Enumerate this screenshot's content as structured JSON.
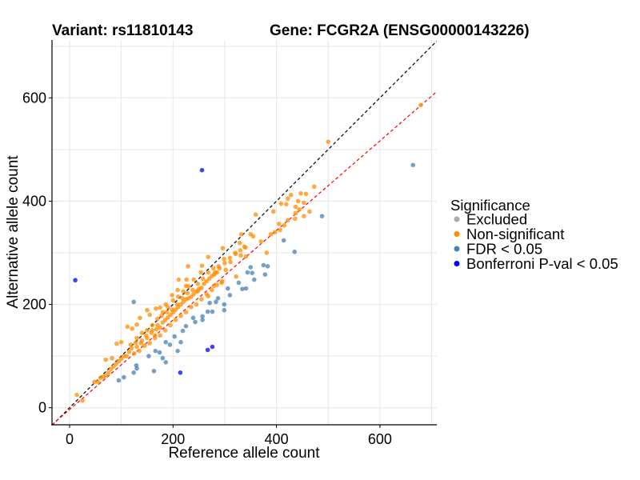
{
  "chart_data": {
    "type": "scatter",
    "title_left": "Variant: rs11810143",
    "title_right": "Gene: FCGR2A (ENSG00000143226)",
    "xlabel": "Reference allele count",
    "ylabel": "Alternative allele count",
    "xlim": [
      -34,
      710
    ],
    "ylim": [
      -33,
      712
    ],
    "xticks": [
      0,
      200,
      400,
      600
    ],
    "yticks": [
      0,
      200,
      400,
      600
    ],
    "grid": true,
    "legend": {
      "title": "Significance",
      "placement": "right",
      "entries": [
        {
          "label": "Excluded",
          "color": "#A9A9A9"
        },
        {
          "label": "Non-significant",
          "color": "#FF8C00"
        },
        {
          "label": "FDR < 0.05",
          "color": "#4682B4"
        },
        {
          "label": "Bonferroni P-val < 0.05",
          "color": "#0000FF"
        }
      ]
    },
    "reference_line": {
      "slope": 1,
      "intercept": 0,
      "color": "#000000",
      "style": "dashed"
    },
    "regression_line": {
      "slope": 0.867,
      "intercept": -3.5,
      "color": "#FF0000",
      "style": "dashed"
    },
    "series": [
      {
        "name": "Non-significant",
        "color": "#FF8C00",
        "points": [
          [
            679,
            586
          ],
          [
            500,
            515
          ],
          [
            473,
            428
          ],
          [
            447,
            415
          ],
          [
            457,
            414
          ],
          [
            428,
            412
          ],
          [
            422,
            405
          ],
          [
            442,
            400
          ],
          [
            453,
            397
          ],
          [
            409,
            395
          ],
          [
            419,
            394
          ],
          [
            437,
            389
          ],
          [
            444,
            384
          ],
          [
            464,
            380
          ],
          [
            394,
            380
          ],
          [
            437,
            377
          ],
          [
            360,
            374
          ],
          [
            453,
            371
          ],
          [
            436,
            366
          ],
          [
            422,
            363
          ],
          [
            405,
            356
          ],
          [
            415,
            353
          ],
          [
            407,
            344
          ],
          [
            397,
            340
          ],
          [
            389,
            336
          ],
          [
            332,
            336
          ],
          [
            350,
            336
          ],
          [
            355,
            332
          ],
          [
            370,
            322
          ],
          [
            329,
            319
          ],
          [
            338,
            312
          ],
          [
            381,
            300
          ],
          [
            296,
            309
          ],
          [
            321,
            298
          ],
          [
            331,
            295
          ],
          [
            341,
            293
          ],
          [
            268,
            292
          ],
          [
            299,
            288
          ],
          [
            311,
            282
          ],
          [
            256,
            275
          ],
          [
            229,
            274
          ],
          [
            288,
            274
          ],
          [
            302,
            267
          ],
          [
            281,
            262
          ],
          [
            254,
            262
          ],
          [
            322,
            254
          ],
          [
            211,
            248
          ],
          [
            226,
            248
          ],
          [
            294,
            242
          ],
          [
            279,
            236
          ],
          [
            225,
            236
          ],
          [
            209,
            228
          ],
          [
            248,
            226
          ],
          [
            198,
            218
          ],
          [
            268,
            216
          ],
          [
            186,
            200
          ],
          [
            150,
            189
          ],
          [
            155,
            180
          ],
          [
            167,
            192
          ],
          [
            175,
            194
          ],
          [
            136,
            174
          ],
          [
            130,
            161
          ],
          [
            112,
            157
          ],
          [
            121,
            153
          ],
          [
            100,
            127
          ],
          [
            91,
            124
          ],
          [
            70,
            93
          ],
          [
            82,
            96
          ],
          [
            48,
            50
          ],
          [
            14,
            25
          ],
          [
            25,
            14
          ],
          [
            120,
            115
          ],
          [
            130,
            118
          ],
          [
            140,
            130
          ],
          [
            150,
            135
          ],
          [
            160,
            150
          ],
          [
            165,
            140
          ],
          [
            170,
            160
          ],
          [
            175,
            155
          ],
          [
            180,
            165
          ],
          [
            185,
            170
          ],
          [
            190,
            175
          ],
          [
            195,
            180
          ],
          [
            200,
            185
          ],
          [
            205,
            190
          ],
          [
            210,
            195
          ],
          [
            215,
            200
          ],
          [
            220,
            205
          ],
          [
            225,
            210
          ],
          [
            230,
            212
          ],
          [
            235,
            215
          ],
          [
            240,
            220
          ],
          [
            245,
            225
          ],
          [
            250,
            230
          ],
          [
            255,
            232
          ],
          [
            260,
            240
          ],
          [
            265,
            245
          ],
          [
            270,
            250
          ],
          [
            275,
            255
          ],
          [
            280,
            258
          ],
          [
            285,
            262
          ],
          [
            290,
            270
          ],
          [
            150,
            150
          ],
          [
            160,
            160
          ],
          [
            170,
            172
          ],
          [
            180,
            185
          ],
          [
            190,
            195
          ],
          [
            200,
            208
          ],
          [
            210,
            215
          ],
          [
            220,
            225
          ],
          [
            230,
            235
          ],
          [
            240,
            248
          ],
          [
            110,
            100
          ],
          [
            125,
            105
          ],
          [
            135,
            110
          ],
          [
            145,
            120
          ],
          [
            155,
            125
          ],
          [
            165,
            135
          ],
          [
            175,
            140
          ],
          [
            185,
            150
          ],
          [
            195,
            160
          ],
          [
            205,
            170
          ],
          [
            215,
            178
          ],
          [
            225,
            185
          ],
          [
            235,
            195
          ],
          [
            245,
            200
          ],
          [
            255,
            210
          ],
          [
            265,
            220
          ],
          [
            275,
            228
          ],
          [
            285,
            238
          ],
          [
            295,
            245
          ],
          [
            140,
            145
          ],
          [
            130,
            135
          ],
          [
            100,
            95
          ],
          [
            90,
            85
          ],
          [
            80,
            75
          ],
          [
            70,
            62
          ],
          [
            60,
            58
          ],
          [
            55,
            50
          ],
          [
            65,
            60
          ],
          [
            75,
            68
          ],
          [
            85,
            80
          ],
          [
            95,
            90
          ],
          [
            105,
            100
          ],
          [
            115,
            108
          ],
          [
            118,
            122
          ],
          [
            128,
            126
          ],
          [
            138,
            125
          ],
          [
            148,
            140
          ],
          [
            158,
            145
          ],
          [
            168,
            152
          ],
          [
            178,
            178
          ],
          [
            188,
            185
          ],
          [
            198,
            190
          ],
          [
            208,
            200
          ],
          [
            218,
            212
          ],
          [
            228,
            222
          ],
          [
            238,
            228
          ],
          [
            248,
            240
          ],
          [
            258,
            250
          ],
          [
            268,
            262
          ],
          [
            278,
            270
          ],
          [
            300,
            280
          ],
          [
            310,
            290
          ],
          [
            320,
            300
          ],
          [
            330,
            305
          ],
          [
            340,
            310
          ]
        ]
      },
      {
        "name": "FDR < 0.05",
        "color": "#4682B4",
        "points": [
          [
            664,
            470
          ],
          [
            488,
            371
          ],
          [
            414,
            324
          ],
          [
            435,
            302
          ],
          [
            375,
            276
          ],
          [
            383,
            274
          ],
          [
            350,
            272
          ],
          [
            344,
            262
          ],
          [
            353,
            261
          ],
          [
            378,
            258
          ],
          [
            357,
            248
          ],
          [
            327,
            242
          ],
          [
            341,
            231
          ],
          [
            334,
            230
          ],
          [
            310,
            218
          ],
          [
            306,
            231
          ],
          [
            287,
            212
          ],
          [
            299,
            200
          ],
          [
            299,
            189
          ],
          [
            283,
            205
          ],
          [
            271,
            203
          ],
          [
            276,
            186
          ],
          [
            267,
            186
          ],
          [
            257,
            177
          ],
          [
            257,
            170
          ],
          [
            243,
            166
          ],
          [
            239,
            174
          ],
          [
            225,
            158
          ],
          [
            219,
            149
          ],
          [
            203,
            138
          ],
          [
            215,
            127
          ],
          [
            209,
            110
          ],
          [
            194,
            122
          ],
          [
            186,
            127
          ],
          [
            174,
            107
          ],
          [
            166,
            110
          ],
          [
            153,
            100
          ],
          [
            180,
            96
          ],
          [
            186,
            88
          ],
          [
            129,
            82
          ],
          [
            130,
            76
          ],
          [
            124,
            68
          ],
          [
            163,
            71
          ],
          [
            105,
            59
          ],
          [
            95,
            53
          ],
          [
            124,
            205
          ]
        ]
      },
      {
        "name": "Bonferroni P-val < 0.05",
        "color": "#0000FF",
        "points": [
          [
            256,
            460
          ],
          [
            11,
            247
          ],
          [
            267,
            112
          ],
          [
            276,
            118
          ],
          [
            214,
            68
          ]
        ]
      }
    ]
  }
}
